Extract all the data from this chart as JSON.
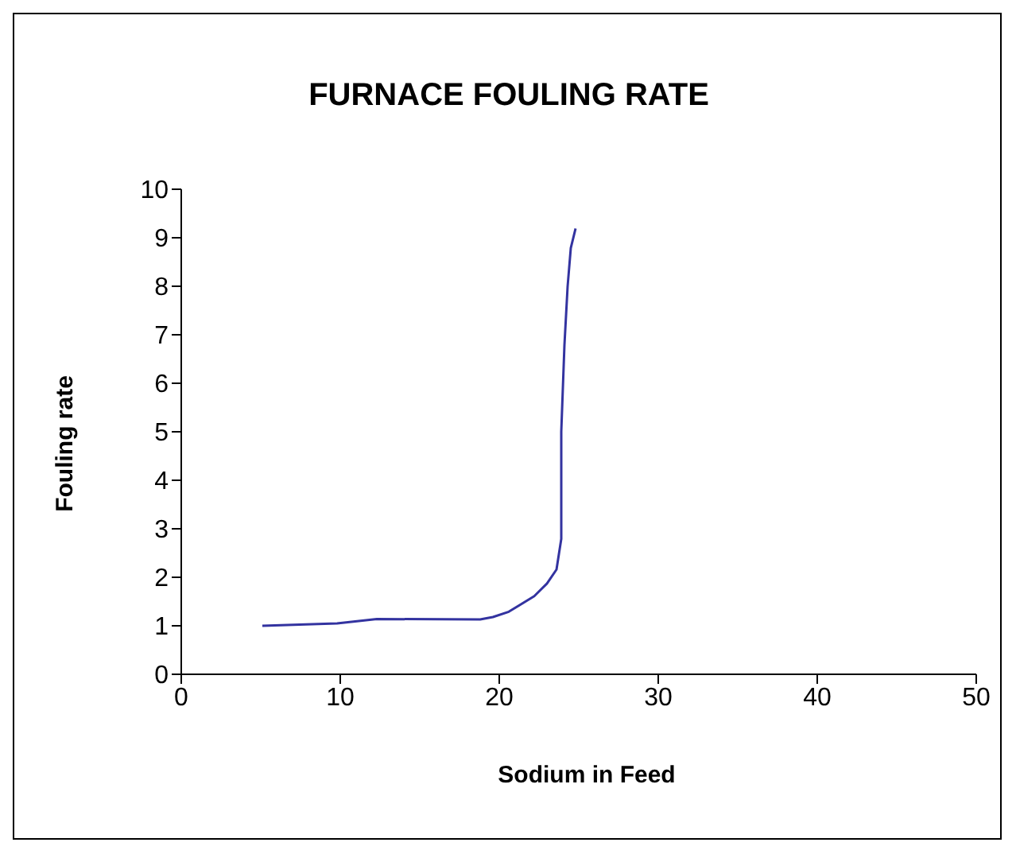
{
  "chart_data": {
    "type": "line",
    "title": "FURNACE  FOULING RATE",
    "xlabel": "Sodium in Feed",
    "ylabel": "Fouling rate",
    "x": [
      5.1,
      9.8,
      12.3,
      18.8,
      19.6,
      20.6,
      22.2,
      23.0,
      23.6,
      23.9,
      23.9,
      24.1,
      24.3,
      24.5,
      24.8
    ],
    "series": [
      {
        "color": "#3333a0",
        "values": [
          1.0,
          1.05,
          1.14,
          1.13,
          1.18,
          1.29,
          1.61,
          1.87,
          2.16,
          2.79,
          5.0,
          6.79,
          8.0,
          8.79,
          9.19
        ]
      }
    ],
    "xlim": [
      0,
      50
    ],
    "xticks": [
      0,
      10,
      20,
      30,
      40,
      50
    ],
    "ylim": [
      0,
      10
    ],
    "yticks": [
      0,
      1,
      2,
      3,
      4,
      5,
      6,
      7,
      8,
      9,
      10
    ],
    "grid": false,
    "marker": "none",
    "line_style": "solid"
  }
}
